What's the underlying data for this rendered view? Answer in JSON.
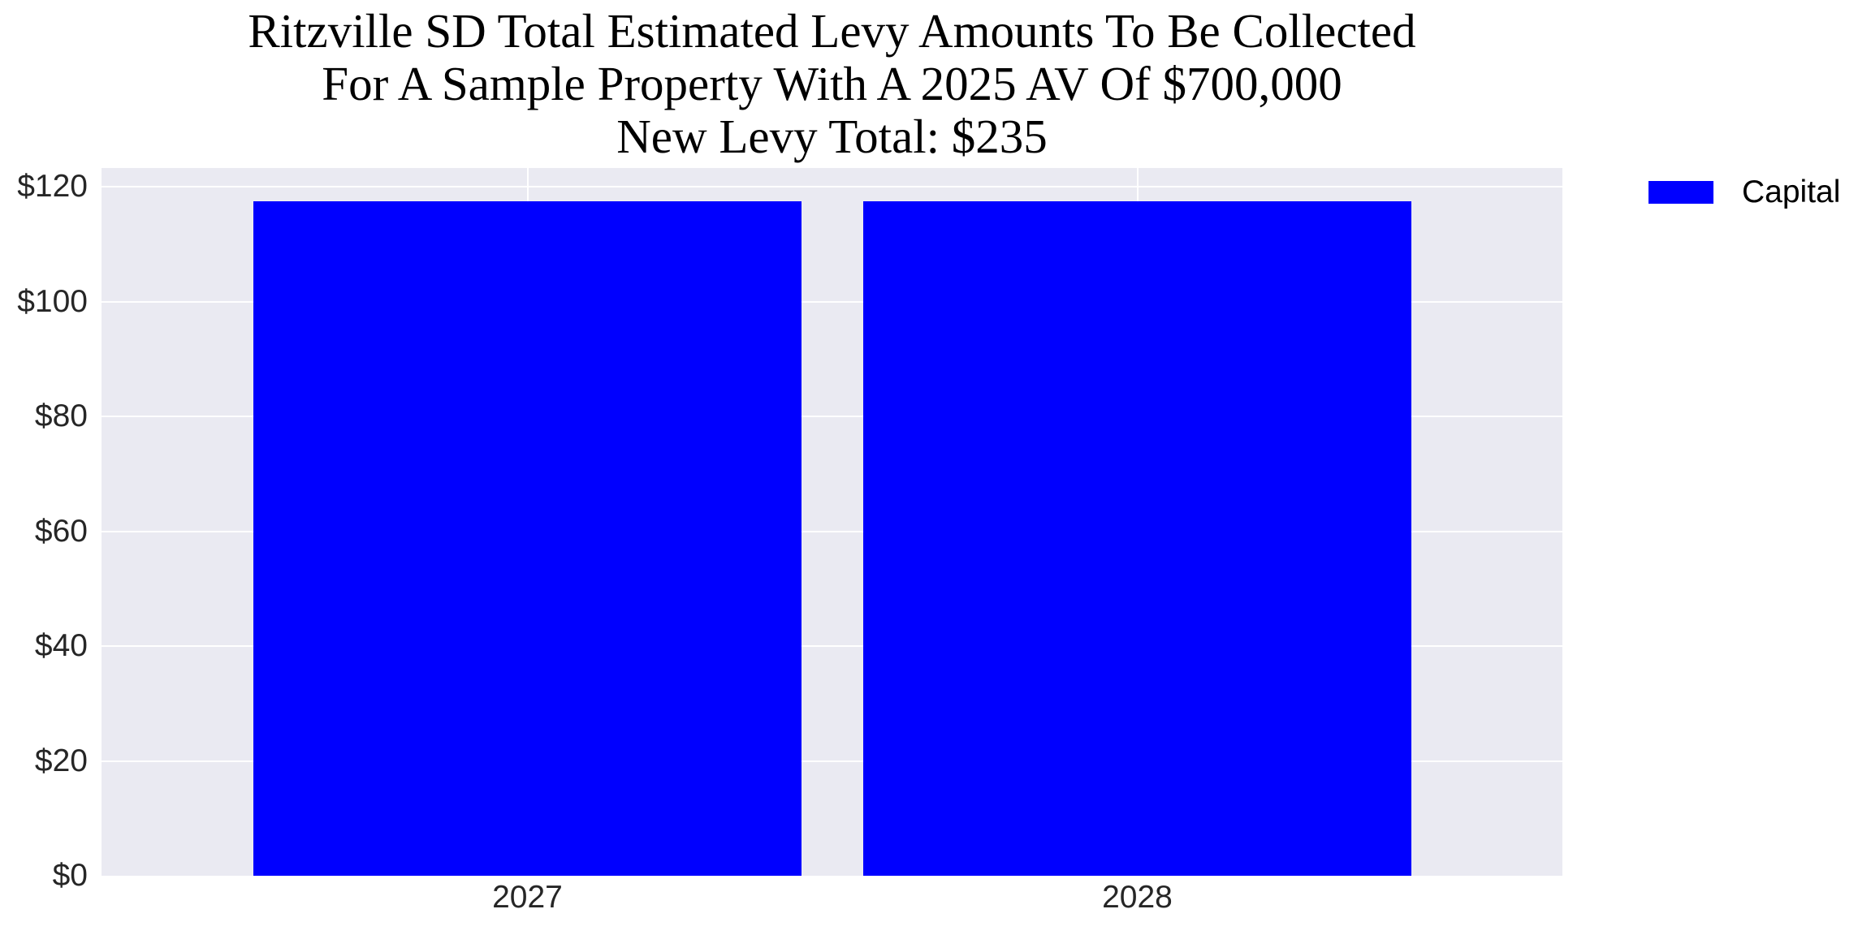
{
  "title": {
    "line1": "Ritzville SD Total Estimated Levy Amounts To Be Collected",
    "line2": "For A Sample Property With A 2025 AV Of $700,000",
    "line3": "New Levy Total: $235"
  },
  "y_axis": {
    "ticks": [
      "$0",
      "$20",
      "$40",
      "$60",
      "$80",
      "$100",
      "$120"
    ]
  },
  "x_axis": {
    "ticks": [
      "2027",
      "2028"
    ]
  },
  "legend": {
    "items": [
      {
        "label": "Capital",
        "color": "#0000ff"
      }
    ]
  },
  "colors": {
    "plot_background": "#eaeaf2",
    "grid": "#ffffff",
    "bar": "#0000ff"
  },
  "chart_data": {
    "type": "bar",
    "title": "Ritzville SD Total Estimated Levy Amounts To Be Collected\nFor A Sample Property With A 2025 AV Of $700,000\nNew Levy Total: $235",
    "categories": [
      "2027",
      "2028"
    ],
    "series": [
      {
        "name": "Capital",
        "color": "#0000ff",
        "values": [
          117.5,
          117.5
        ]
      }
    ],
    "xlabel": "",
    "ylabel": "",
    "ylim": [
      0,
      123
    ],
    "yticks": [
      0,
      20,
      40,
      60,
      80,
      100,
      120
    ],
    "ytick_format": "$",
    "grid": true,
    "legend_position": "upper right, outside plot"
  }
}
